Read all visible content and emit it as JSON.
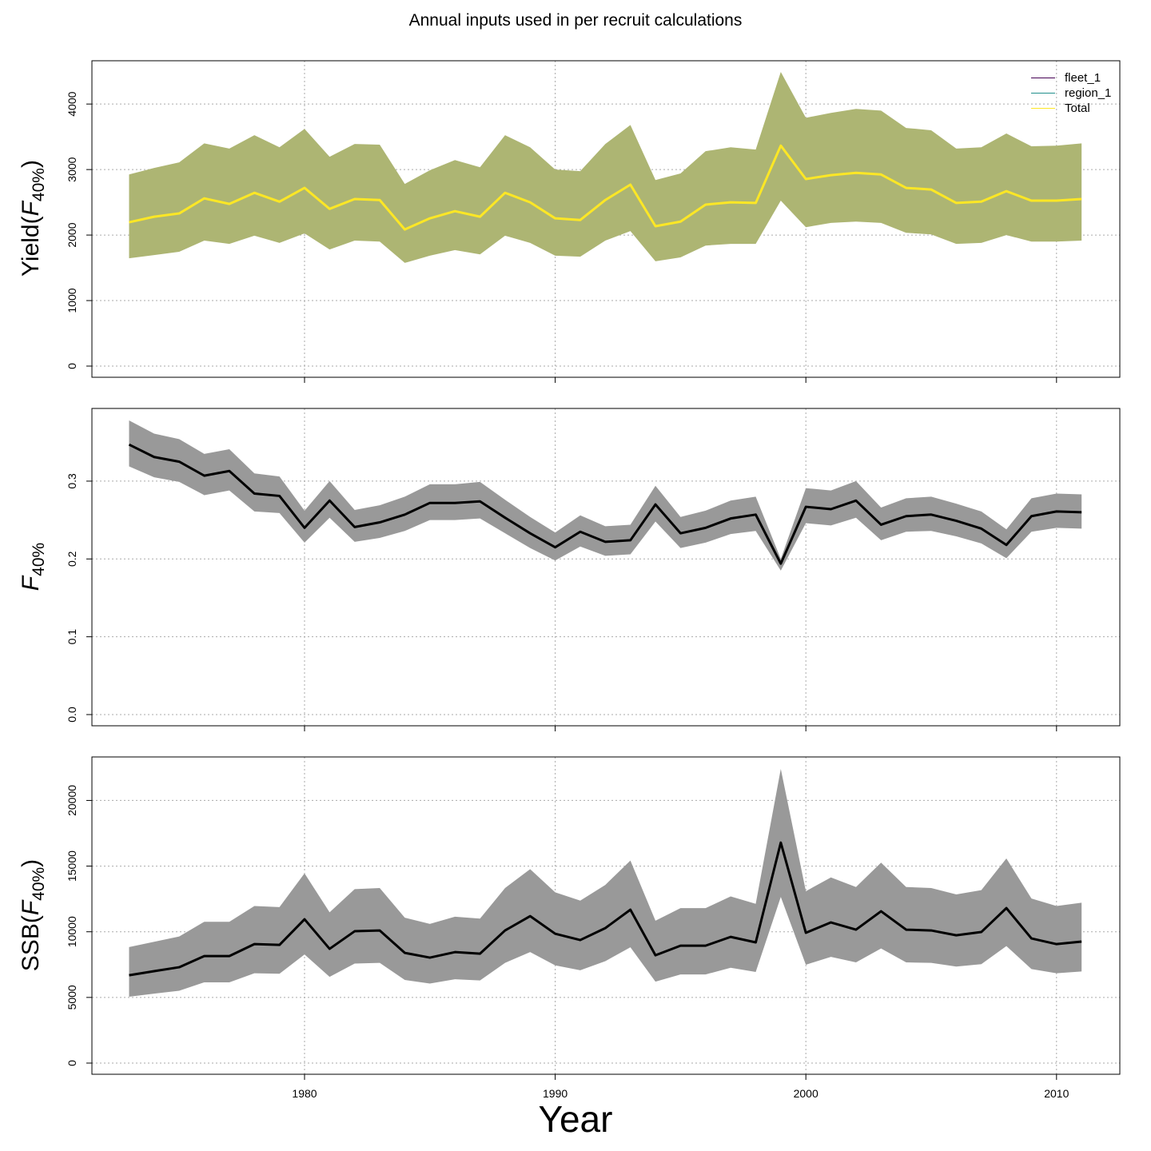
{
  "title": "Annual inputs used in per recruit calculations",
  "xlabel": "Year",
  "legend": [
    {
      "label": "fleet_1",
      "color": "#440154"
    },
    {
      "label": "region_1",
      "color": "#21908c"
    },
    {
      "label": "Total",
      "color": "#fde725"
    }
  ],
  "chart_data": [
    {
      "type": "line",
      "ylabel": {
        "prefix": "Yield(",
        "symbol": "F",
        "sub": "40%",
        "suffix": ")"
      },
      "ylim": [
        0,
        4500
      ],
      "yticks": [
        0,
        1000,
        2000,
        3000,
        4000
      ],
      "xlim": [
        1972,
        2012
      ],
      "xticks": [
        1980,
        1990,
        2000,
        2010
      ],
      "grid": true,
      "legend_position": "top-right",
      "band_color": "#adb573",
      "line_color": "#fde725",
      "x": [
        1973,
        1974,
        1975,
        1976,
        1977,
        1978,
        1979,
        1980,
        1981,
        1982,
        1983,
        1984,
        1985,
        1986,
        1987,
        1988,
        1989,
        1990,
        1991,
        1992,
        1993,
        1994,
        1995,
        1996,
        1997,
        1998,
        1999,
        2000,
        2001,
        2002,
        2003,
        2004,
        2005,
        2006,
        2007,
        2008,
        2009,
        2010,
        2011
      ],
      "mean": [
        2195,
        2280,
        2330,
        2560,
        2475,
        2645,
        2510,
        2720,
        2400,
        2550,
        2535,
        2085,
        2255,
        2365,
        2280,
        2645,
        2500,
        2255,
        2230,
        2535,
        2770,
        2135,
        2205,
        2465,
        2500,
        2490,
        3365,
        2855,
        2915,
        2950,
        2925,
        2720,
        2695,
        2490,
        2510,
        2670,
        2525,
        2525,
        2550
      ],
      "upper": [
        2925,
        3025,
        3110,
        3400,
        3320,
        3525,
        3340,
        3620,
        3195,
        3390,
        3380,
        2780,
        2990,
        3145,
        3035,
        3525,
        3340,
        3000,
        2975,
        3390,
        3680,
        2840,
        2940,
        3280,
        3340,
        3305,
        4490,
        3790,
        3865,
        3925,
        3900,
        3635,
        3600,
        3320,
        3340,
        3550,
        3355,
        3365,
        3400
      ],
      "lower": [
        1645,
        1695,
        1745,
        1915,
        1865,
        1990,
        1880,
        2025,
        1780,
        1915,
        1900,
        1575,
        1685,
        1770,
        1705,
        1990,
        1880,
        1685,
        1670,
        1915,
        2060,
        1600,
        1660,
        1840,
        1865,
        1865,
        2525,
        2120,
        2185,
        2205,
        2185,
        2035,
        2010,
        1865,
        1880,
        2000,
        1900,
        1900,
        1915
      ]
    },
    {
      "type": "line",
      "ylabel": {
        "prefix": "",
        "symbol": "F",
        "sub": "40%",
        "suffix": ""
      },
      "ylim": [
        0,
        0.4
      ],
      "yticks": [
        0.0,
        0.1,
        0.2,
        0.3
      ],
      "xlim": [
        1972,
        2012
      ],
      "xticks": [
        1980,
        1990,
        2000,
        2010
      ],
      "grid": true,
      "band_color": "#999999",
      "line_color": "#000000",
      "x": [
        1973,
        1974,
        1975,
        1976,
        1977,
        1978,
        1979,
        1980,
        1981,
        1982,
        1983,
        1984,
        1985,
        1986,
        1987,
        1988,
        1989,
        1990,
        1991,
        1992,
        1993,
        1994,
        1995,
        1996,
        1997,
        1998,
        1999,
        2000,
        2001,
        2002,
        2003,
        2004,
        2005,
        2006,
        2007,
        2008,
        2009,
        2010,
        2011
      ],
      "mean": [
        0.347,
        0.331,
        0.325,
        0.307,
        0.313,
        0.284,
        0.281,
        0.24,
        0.275,
        0.241,
        0.247,
        0.257,
        0.272,
        0.272,
        0.274,
        0.253,
        0.233,
        0.215,
        0.235,
        0.222,
        0.224,
        0.27,
        0.233,
        0.24,
        0.252,
        0.257,
        0.194,
        0.267,
        0.264,
        0.275,
        0.244,
        0.255,
        0.257,
        0.249,
        0.239,
        0.218,
        0.255,
        0.261,
        0.26
      ],
      "upper": [
        0.378,
        0.361,
        0.354,
        0.335,
        0.341,
        0.31,
        0.306,
        0.262,
        0.3,
        0.263,
        0.269,
        0.28,
        0.296,
        0.296,
        0.299,
        0.276,
        0.254,
        0.234,
        0.256,
        0.242,
        0.244,
        0.294,
        0.254,
        0.262,
        0.275,
        0.28,
        0.2,
        0.291,
        0.288,
        0.3,
        0.266,
        0.278,
        0.28,
        0.271,
        0.261,
        0.238,
        0.278,
        0.284,
        0.283
      ],
      "lower": [
        0.319,
        0.305,
        0.299,
        0.282,
        0.288,
        0.261,
        0.259,
        0.221,
        0.253,
        0.222,
        0.227,
        0.236,
        0.25,
        0.25,
        0.252,
        0.233,
        0.214,
        0.198,
        0.216,
        0.204,
        0.206,
        0.248,
        0.214,
        0.221,
        0.232,
        0.236,
        0.185,
        0.246,
        0.243,
        0.253,
        0.224,
        0.235,
        0.236,
        0.229,
        0.22,
        0.201,
        0.235,
        0.24,
        0.239
      ]
    },
    {
      "type": "line",
      "ylabel": {
        "prefix": "SSB(",
        "symbol": "F",
        "sub": "40%",
        "suffix": ")"
      },
      "ylim": [
        0,
        23000
      ],
      "yticks": [
        0,
        5000,
        10000,
        15000,
        20000
      ],
      "xlim": [
        1972,
        2012
      ],
      "xticks": [
        1980,
        1990,
        2000,
        2010
      ],
      "grid": true,
      "band_color": "#999999",
      "line_color": "#000000",
      "x": [
        1973,
        1974,
        1975,
        1976,
        1977,
        1978,
        1979,
        1980,
        1981,
        1982,
        1983,
        1984,
        1985,
        1986,
        1987,
        1988,
        1989,
        1990,
        1991,
        1992,
        1993,
        1994,
        1995,
        1996,
        1997,
        1998,
        1999,
        2000,
        2001,
        2002,
        2003,
        2004,
        2005,
        2006,
        2007,
        2008,
        2009,
        2010,
        2011
      ],
      "mean": [
        6690,
        7000,
        7300,
        8150,
        8150,
        9060,
        9000,
        10950,
        8700,
        10040,
        10100,
        8390,
        8030,
        8450,
        8330,
        10100,
        11190,
        9850,
        9370,
        10280,
        11680,
        8210,
        8940,
        8940,
        9610,
        9190,
        16790,
        9920,
        10710,
        10160,
        11560,
        10160,
        10100,
        9730,
        9980,
        11800,
        9490,
        9060,
        9250
      ],
      "upper": [
        8830,
        9240,
        9640,
        10760,
        10760,
        11960,
        11880,
        14450,
        11480,
        13250,
        13330,
        11070,
        10600,
        11150,
        11000,
        13330,
        14770,
        13000,
        12370,
        13570,
        15420,
        10840,
        11800,
        11800,
        12690,
        12130,
        22400,
        13090,
        14140,
        13410,
        15260,
        13410,
        13330,
        12840,
        13170,
        15580,
        12530,
        11960,
        12210
      ],
      "lower": [
        5050,
        5290,
        5510,
        6150,
        6150,
        6840,
        6800,
        8270,
        6570,
        7580,
        7630,
        6330,
        6060,
        6380,
        6290,
        7630,
        8450,
        7440,
        7070,
        7760,
        8820,
        6200,
        6750,
        6750,
        7260,
        6940,
        12650,
        7490,
        8090,
        7670,
        8730,
        7670,
        7630,
        7350,
        7530,
        8910,
        7160,
        6840,
        6980
      ]
    }
  ]
}
